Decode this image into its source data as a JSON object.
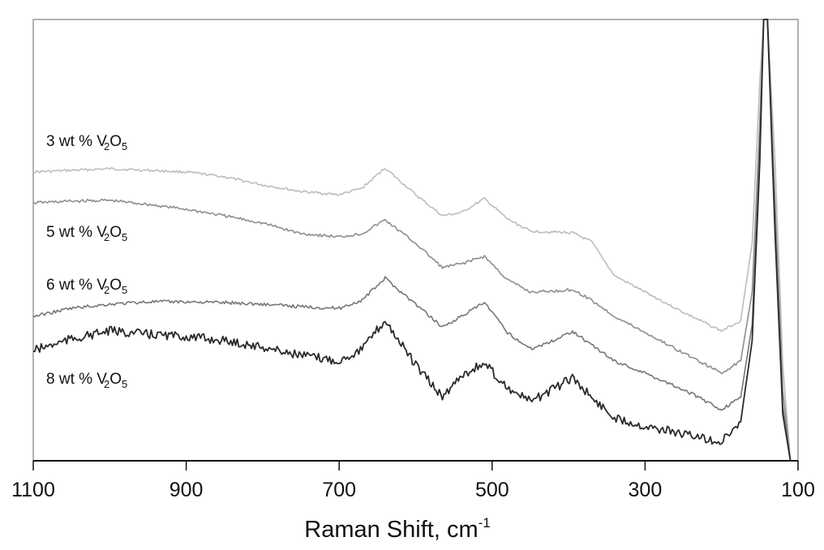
{
  "chart_data": {
    "type": "line",
    "title": "",
    "xlabel": "Raman Shift, cm-1",
    "xlabel_main": "Raman Shift, cm",
    "xlabel_sup": "-1",
    "ylabel": "",
    "xlim": [
      1100,
      100
    ],
    "x_reversed": true,
    "grid": false,
    "legend_position": "inline labels at left",
    "x_ticks": [
      "1100",
      "900",
      "700",
      "500",
      "300",
      "100"
    ],
    "x": [
      1100,
      1050,
      1000,
      950,
      900,
      850,
      800,
      750,
      700,
      670,
      640,
      600,
      565,
      540,
      510,
      480,
      450,
      420,
      395,
      370,
      340,
      300,
      250,
      200,
      175,
      160,
      150,
      145,
      140,
      130,
      120,
      110
    ],
    "series": [
      {
        "name": "3 wt % V2O5",
        "label_main": "3 wt % V",
        "sub1": "2",
        "mid": "O",
        "sub2": "5",
        "color": "#bdbdbd",
        "values": [
          212,
          210,
          208,
          210,
          212,
          218,
          228,
          236,
          240,
          232,
          207,
          240,
          266,
          262,
          245,
          270,
          285,
          286,
          287,
          298,
          340,
          360,
          385,
          408,
          395,
          300,
          100,
          24,
          24,
          200,
          450,
          568
        ]
      },
      {
        "name": "5 wt % V2O5",
        "label_main": "5 wt % V",
        "sub1": "2",
        "mid": "O",
        "sub2": "5",
        "color": "#8e8e8e",
        "values": [
          250,
          248,
          247,
          252,
          258,
          266,
          275,
          288,
          292,
          288,
          271,
          300,
          330,
          325,
          316,
          345,
          360,
          359,
          357,
          370,
          390,
          410,
          435,
          460,
          445,
          360,
          150,
          24,
          24,
          250,
          480,
          568
        ]
      },
      {
        "name": "6 wt % V2O5",
        "label_main": "6 wt % V",
        "sub1": "2",
        "mid": "O",
        "sub2": "5",
        "color": "#767676",
        "values": [
          390,
          380,
          375,
          372,
          372,
          373,
          375,
          378,
          380,
          370,
          343,
          375,
          403,
          390,
          373,
          410,
          430,
          420,
          408,
          425,
          445,
          460,
          480,
          505,
          490,
          400,
          180,
          24,
          24,
          270,
          500,
          568
        ]
      },
      {
        "name": "8 wt % V2O5",
        "label_main": "8 wt % V",
        "sub1": "2",
        "mid": "O",
        "sub2": "5",
        "color": "#2a2a2a",
        "values": [
          432,
          418,
          408,
          412,
          415,
          420,
          428,
          438,
          445,
          430,
          395,
          450,
          490,
          462,
          448,
          478,
          495,
          480,
          465,
          490,
          515,
          525,
          535,
          545,
          520,
          420,
          200,
          24,
          24,
          290,
          510,
          568
        ]
      }
    ],
    "y_units": "pixel-estimated intensity (arbitrary, offset spectra)",
    "peaks_cm-1": [
      640,
      510,
      395,
      145
    ]
  }
}
